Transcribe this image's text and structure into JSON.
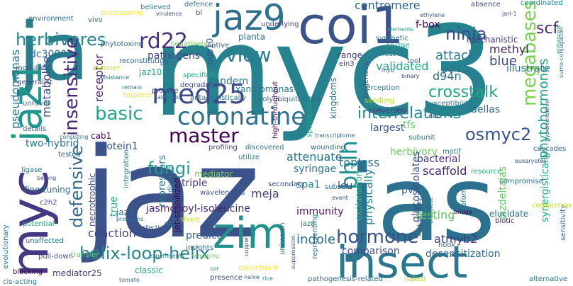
{
  "words": [
    {
      "text": "myc3",
      "color": "#26828e"
    },
    {
      "text": "ja",
      "color": "#277f8e"
    },
    {
      "text": "jaz",
      "color": "#3b528b"
    },
    {
      "text": "jas",
      "color": "#2c728e"
    },
    {
      "text": "coi1",
      "color": "#3b528b"
    },
    {
      "text": "jaz9",
      "color": "#2d708e"
    },
    {
      "text": "myc",
      "color": "#443983"
    },
    {
      "text": "jaz1",
      "color": "#1f988b"
    },
    {
      "text": "zim",
      "color": "#21918c"
    },
    {
      "text": "insect",
      "color": "#2a788e"
    },
    {
      "text": "coronatine",
      "color": "#2c728e"
    },
    {
      "text": "med25",
      "color": "#3e4989"
    },
    {
      "text": "crosstalk",
      "color": "#22a884"
    },
    {
      "text": "megabases",
      "color": "#7ad151"
    },
    {
      "text": "herbivores",
      "color": "#24868e"
    },
    {
      "text": "rd22",
      "color": "#46327e"
    },
    {
      "text": "ninja",
      "color": "#3e4a89"
    },
    {
      "text": "scf",
      "color": "#472c7a"
    },
    {
      "text": "view",
      "color": "#287c8e"
    },
    {
      "text": "interrelations",
      "color": "#23898e"
    },
    {
      "text": "master",
      "color": "#440154"
    },
    {
      "text": "basic",
      "color": "#22a785"
    },
    {
      "text": "insensitive",
      "color": "#482878"
    },
    {
      "text": "defensive",
      "color": "#31688e"
    },
    {
      "text": "fungi",
      "color": "#1fa187"
    },
    {
      "text": "helix-loop-helix",
      "color": "#24878e"
    },
    {
      "text": "hormone",
      "color": "#3b528b"
    },
    {
      "text": "osmyc2",
      "color": "#3b528b"
    },
    {
      "text": "bhlh",
      "color": "#21918c"
    },
    {
      "text": "phytohormones",
      "color": "#1f9e89"
    },
    {
      "text": "attack",
      "color": "#2a768e"
    },
    {
      "text": "blue",
      "color": "#3f4889"
    },
    {
      "text": "d94n",
      "color": "#2d708e"
    },
    {
      "text": "centromere",
      "color": "#31688e"
    },
    {
      "text": "methyl",
      "color": "#481f70"
    },
    {
      "text": "f-box",
      "color": "#440154"
    },
    {
      "text": "mechanistic",
      "color": "#453781"
    },
    {
      "text": "dc3000",
      "color": "#31688e"
    },
    {
      "text": "metabolite",
      "color": "#3b528b"
    },
    {
      "text": "receptor",
      "color": "#482576"
    },
    {
      "text": "pathogens",
      "color": "#3f4788"
    },
    {
      "text": "jaz10",
      "color": "#22a884"
    },
    {
      "text": "tandem",
      "color": "#2c738e"
    },
    {
      "text": "validated",
      "color": "#22a884"
    },
    {
      "text": "pdf1.2",
      "color": "#2d718e"
    },
    {
      "text": "illustrate",
      "color": "#2d708e"
    },
    {
      "text": "dellas",
      "color": "#2f6c8e"
    },
    {
      "text": "tfs",
      "color": "#5ec962"
    },
    {
      "text": "largest",
      "color": "#39568c"
    },
    {
      "text": "kingdoms",
      "color": "#2b748e"
    },
    {
      "text": "cab1",
      "color": "#440154"
    },
    {
      "text": "protein1",
      "color": "#3a548c"
    },
    {
      "text": "two-hybrid",
      "color": "#2a778e"
    },
    {
      "text": "pseudomonas",
      "color": "#2c728e"
    },
    {
      "text": "necrotrophic",
      "color": "#3b528b"
    },
    {
      "text": "true",
      "color": "#29af7f"
    },
    {
      "text": "repressors",
      "color": "#2a788e"
    },
    {
      "text": "jet-stabilized",
      "color": "#440154"
    },
    {
      "text": "mediator",
      "color": "#7ad151"
    },
    {
      "text": "triple",
      "color": "#443983"
    },
    {
      "text": "meja",
      "color": "#404688"
    },
    {
      "text": "attenuate",
      "color": "#2c728e"
    },
    {
      "text": "syringae",
      "color": "#2a768e"
    },
    {
      "text": "spa1",
      "color": "#26828e"
    },
    {
      "text": "topless",
      "color": "#2c728e"
    },
    {
      "text": "herbivory",
      "color": "#6ece58"
    },
    {
      "text": "bacterial",
      "color": "#482878"
    },
    {
      "text": "scaffold",
      "color": "#482173"
    },
    {
      "text": "glucosinolates",
      "color": "#3b528b"
    },
    {
      "text": "resting",
      "color": "#5ec962"
    },
    {
      "text": "jazdeltajas",
      "color": "#65cb5e"
    },
    {
      "text": "synergistically",
      "color": "#22a884"
    },
    {
      "text": "explanation",
      "color": "#29af7f"
    },
    {
      "text": "physically",
      "color": "#26828e"
    },
    {
      "text": "leu",
      "color": "#443a83"
    },
    {
      "text": "pv",
      "color": "#31688e"
    },
    {
      "text": "jasmonoyl-isoleucine",
      "color": "#482979"
    },
    {
      "text": "jaz3",
      "color": "#2f6b8e"
    },
    {
      "text": "coaction",
      "color": "#424086"
    },
    {
      "text": "predict",
      "color": "#365c8d"
    },
    {
      "text": "immunity",
      "color": "#471164"
    },
    {
      "text": "indole",
      "color": "#2f6c8e"
    },
    {
      "text": "atmyb2",
      "color": "#453882"
    },
    {
      "text": "comparison",
      "color": "#3e4989"
    },
    {
      "text": "desensitization",
      "color": "#31688e"
    },
    {
      "text": "mediator25",
      "color": "#443983"
    },
    {
      "text": "classic",
      "color": "#29af7f"
    },
    {
      "text": "jaz8",
      "color": "#2a778e"
    },
    {
      "text": "believed",
      "color": "#26828e"
    },
    {
      "text": "defence",
      "color": "#2c728e"
    },
    {
      "text": "underlying",
      "color": "#404688"
    },
    {
      "text": "planta",
      "color": "#2c728e"
    },
    {
      "text": "xanthomonas",
      "color": "#2a788e"
    },
    {
      "text": "range",
      "color": "#453882"
    },
    {
      "text": "ein3",
      "color": "#414487"
    },
    {
      "text": "host",
      "color": "#2a778e"
    },
    {
      "text": "pub10",
      "color": "#3b528b"
    },
    {
      "text": "phytotoxins",
      "color": "#31688e"
    },
    {
      "text": "environment",
      "color": "#31688e"
    },
    {
      "text": "modulate",
      "color": "#38598c"
    },
    {
      "text": "generalist",
      "color": "#404688"
    },
    {
      "text": "unravel",
      "color": "#31688e"
    },
    {
      "text": "details",
      "color": "#375b8d"
    },
    {
      "text": "ligase",
      "color": "#2c728e"
    },
    {
      "text": "tested",
      "color": "#31688e"
    },
    {
      "text": "fine-tuning",
      "color": "#2c728e"
    },
    {
      "text": "c2h2",
      "color": "#3b528b"
    },
    {
      "text": "potential",
      "color": "#20a386"
    },
    {
      "text": "unaffected",
      "color": "#2a788e"
    },
    {
      "text": "blocking",
      "color": "#440154"
    },
    {
      "text": "pull-down",
      "color": "#3b528b"
    },
    {
      "text": "transfer",
      "color": "#5ec962"
    },
    {
      "text": "cis-acting",
      "color": "#2a788e"
    },
    {
      "text": "tomato",
      "color": "#31688e"
    },
    {
      "text": "presence",
      "color": "#3e4989"
    },
    {
      "text": "suppression",
      "color": "#38598c"
    },
    {
      "text": "wounding",
      "color": "#31688e"
    },
    {
      "text": "hook",
      "color": "#2a788e"
    },
    {
      "text": "isoform",
      "color": "#2a768e"
    },
    {
      "text": "elucidate",
      "color": "#2d708e"
    },
    {
      "text": "biotic",
      "color": "#482475"
    },
    {
      "text": "bridge",
      "color": "#440154"
    },
    {
      "text": "alternative",
      "color": "#2a788e"
    },
    {
      "text": "sensitivity",
      "color": "#31688e"
    },
    {
      "text": "completion",
      "color": "#c2df23"
    },
    {
      "text": "compromise",
      "color": "#2d708e"
    },
    {
      "text": "resource",
      "color": "#29af7f"
    },
    {
      "text": "cascades",
      "color": "#2c728e"
    },
    {
      "text": "eukaryotes",
      "color": "#3b528b"
    },
    {
      "text": "coordinated",
      "color": "#24868e"
    },
    {
      "text": "absence",
      "color": "#3e4989"
    },
    {
      "text": "ethylene",
      "color": "#3b528b"
    },
    {
      "text": "jarl-1",
      "color": "#3e4989"
    },
    {
      "text": "sumo-conjugation",
      "color": "#2d708e"
    },
    {
      "text": "proteasome",
      "color": "#fde725"
    },
    {
      "text": "virulence",
      "color": "#3b528b"
    },
    {
      "text": "synthetic",
      "color": "#2c728e"
    },
    {
      "text": "oryzae",
      "color": "#22a884"
    },
    {
      "text": "myb",
      "color": "#2c728e"
    },
    {
      "text": "binary",
      "color": "#3e4989"
    },
    {
      "text": "tool",
      "color": "#31688e"
    },
    {
      "text": "susceptibility",
      "color": "#2c728e"
    },
    {
      "text": "ear",
      "color": "#3b528b"
    },
    {
      "text": "subunit",
      "color": "#31688e"
    },
    {
      "text": "motif",
      "color": "#2a788e"
    },
    {
      "text": "elements",
      "color": "#20a386"
    },
    {
      "text": "exogenous",
      "color": "#3b528b"
    },
    {
      "text": "perception",
      "color": "#2a788e"
    },
    {
      "text": "seedling",
      "color": "#b5de2b"
    },
    {
      "text": "conversely",
      "color": "#46327e"
    },
    {
      "text": "evolutionarily",
      "color": "#3b528b"
    },
    {
      "text": "brassicae",
      "color": "#2c728e"
    },
    {
      "text": "native",
      "color": "#31688e"
    },
    {
      "text": "negatively",
      "color": "#6ece58"
    },
    {
      "text": "pst",
      "color": "#2a788e"
    },
    {
      "text": "reconstituting",
      "color": "#31688e"
    },
    {
      "text": "manner",
      "color": "#c2df23"
    },
    {
      "text": "remain",
      "color": "#2c728e"
    },
    {
      "text": "terpene",
      "color": "#fde725"
    },
    {
      "text": "provide",
      "color": "#3b528b"
    },
    {
      "text": "abscisic",
      "color": "#31688e"
    },
    {
      "text": "specificity",
      "color": "#22a884"
    },
    {
      "text": "degradation",
      "color": "#3b528b"
    },
    {
      "text": "antagonistically",
      "color": "#2c728e"
    },
    {
      "text": "polyubiquitinated",
      "color": "#31688e"
    },
    {
      "text": "high-throughput",
      "color": "#440154"
    },
    {
      "text": "profiling",
      "color": "#3e4989"
    },
    {
      "text": "utilize",
      "color": "#2a788e"
    },
    {
      "text": "discovered",
      "color": "#2c728e"
    },
    {
      "text": "transcriptome",
      "color": "#31688e"
    },
    {
      "text": "spodoptera",
      "color": "#22a884"
    },
    {
      "text": "event",
      "color": "#3b528b"
    },
    {
      "text": "subsets",
      "color": "#2c728e"
    },
    {
      "text": "secondary",
      "color": "#3b528b"
    },
    {
      "text": "unknown",
      "color": "#31688e"
    },
    {
      "text": "representing",
      "color": "#2c728e"
    },
    {
      "text": "pathogenesis-related",
      "color": "#31688e"
    },
    {
      "text": "diverse",
      "color": "#2c728e"
    },
    {
      "text": "share",
      "color": "#c2df23"
    },
    {
      "text": "wavelengths",
      "color": "#3b528b"
    },
    {
      "text": "e3",
      "color": "#2a788e"
    },
    {
      "text": "integration",
      "color": "#2c728e"
    },
    {
      "text": "programs",
      "color": "#31688e"
    },
    {
      "text": "collectively",
      "color": "#3b528b"
    },
    {
      "text": "insights",
      "color": "#2c728e"
    },
    {
      "text": "screening",
      "color": "#6ece58"
    },
    {
      "text": "experiments",
      "color": "#2a788e"
    },
    {
      "text": "columbia-0",
      "color": "#fde725"
    },
    {
      "text": "cor",
      "color": "#2a788e"
    },
    {
      "text": "copper",
      "color": "#3e4989"
    },
    {
      "text": "naive",
      "color": "#31688e"
    },
    {
      "text": "rice",
      "color": "#2c728e"
    },
    {
      "text": "naked",
      "color": "#b5de2b"
    },
    {
      "text": "enhanced",
      "color": "#22a884"
    },
    {
      "text": "hypersensitive",
      "color": "#31688e"
    },
    {
      "text": "assistance",
      "color": "#2c728e"
    },
    {
      "text": "evolutionary",
      "color": "#2a788e"
    },
    {
      "text": "belong",
      "color": "#3b528b"
    },
    {
      "text": "consisting",
      "color": "#2c728e"
    },
    {
      "text": "vivo",
      "color": "#31688e"
    },
    {
      "text": "bl",
      "color": "#3b528b"
    }
  ]
}
